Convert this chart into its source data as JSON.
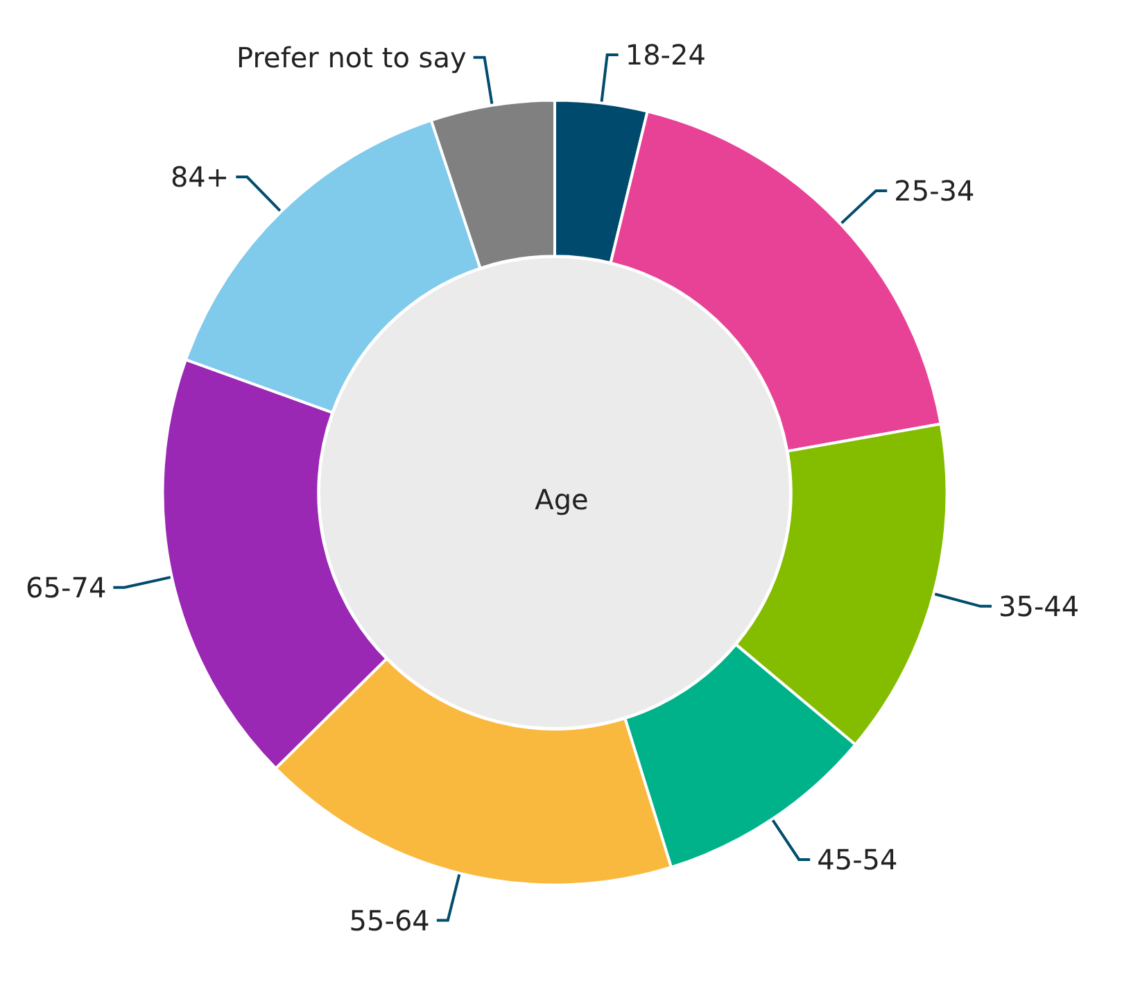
{
  "chart_data": {
    "type": "donut",
    "title": "Age",
    "categories": [
      "18-24",
      "25-34",
      "35-44",
      "45-54",
      "55-64",
      "65-74",
      "84+",
      "Prefer not to say"
    ],
    "values": [
      3.8,
      18.4,
      13.9,
      9.1,
      17.4,
      17.9,
      14.4,
      5.1
    ],
    "colors": [
      "#004a6e",
      "#e84296",
      "#84bd00",
      "#00b28a",
      "#f9b93f",
      "#9b27b5",
      "#80caeb",
      "#808080"
    ]
  }
}
